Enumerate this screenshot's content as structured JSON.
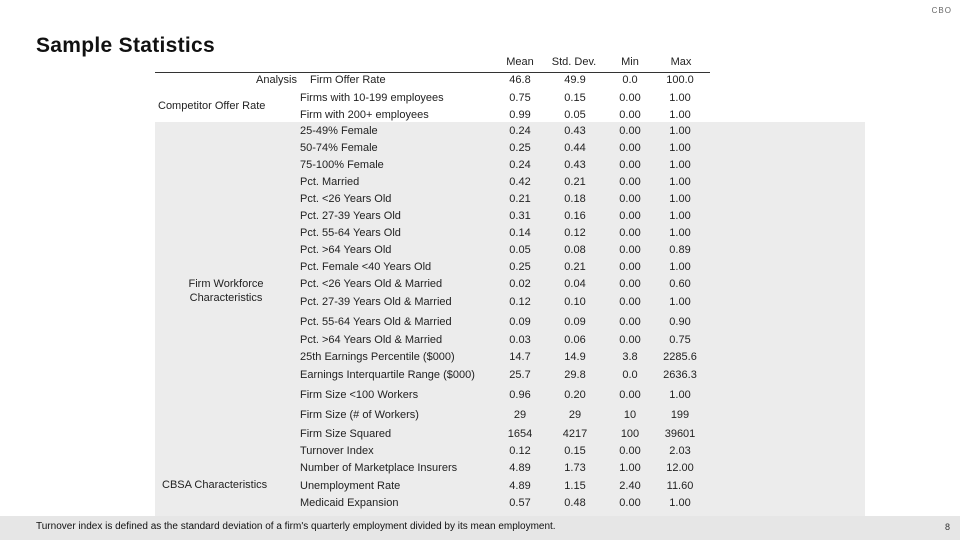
{
  "header": {
    "logo": "CBO",
    "title": "Sample Statistics"
  },
  "table": {
    "columns": [
      "Mean",
      "Std. Dev.",
      "Min",
      "Max"
    ],
    "groups": {
      "analysis": "Analysis",
      "competitor": "Competitor Offer Rate",
      "workforce": "Firm Workforce Characteristics",
      "cbsa": "CBSA Characteristics"
    },
    "rows": [
      {
        "label": "Firm Offer Rate",
        "mean": "46.8",
        "sd": "49.9",
        "min": "0.0",
        "max": "100.0"
      },
      {
        "label": "Firms with 10-199 employees",
        "mean": "0.75",
        "sd": "0.15",
        "min": "0.00",
        "max": "1.00"
      },
      {
        "label": "Firm with 200+ employees",
        "mean": "0.99",
        "sd": "0.05",
        "min": "0.00",
        "max": "1.00"
      },
      {
        "label": "25-49% Female",
        "mean": "0.24",
        "sd": "0.43",
        "min": "0.00",
        "max": "1.00"
      },
      {
        "label": "50-74% Female",
        "mean": "0.25",
        "sd": "0.44",
        "min": "0.00",
        "max": "1.00"
      },
      {
        "label": "75-100% Female",
        "mean": "0.24",
        "sd": "0.43",
        "min": "0.00",
        "max": "1.00"
      },
      {
        "label": "Pct. Married",
        "mean": "0.42",
        "sd": "0.21",
        "min": "0.00",
        "max": "1.00"
      },
      {
        "label": "Pct. <26 Years Old",
        "mean": "0.21",
        "sd": "0.18",
        "min": "0.00",
        "max": "1.00"
      },
      {
        "label": "Pct. 27-39 Years Old",
        "mean": "0.31",
        "sd": "0.16",
        "min": "0.00",
        "max": "1.00"
      },
      {
        "label": "Pct. 55-64 Years Old",
        "mean": "0.14",
        "sd": "0.12",
        "min": "0.00",
        "max": "1.00"
      },
      {
        "label": "Pct. >64 Years Old",
        "mean": "0.05",
        "sd": "0.08",
        "min": "0.00",
        "max": "0.89"
      },
      {
        "label": "Pct. Female <40 Years Old",
        "mean": "0.25",
        "sd": "0.21",
        "min": "0.00",
        "max": "1.00"
      },
      {
        "label": "Pct. <26 Years Old & Married",
        "mean": "0.02",
        "sd": "0.04",
        "min": "0.00",
        "max": "0.60"
      },
      {
        "label": "Pct. 27-39 Years Old & Married",
        "mean": "0.12",
        "sd": "0.10",
        "min": "0.00",
        "max": "1.00"
      },
      {
        "label": "Pct. 55-64 Years Old & Married",
        "mean": "0.09",
        "sd": "0.09",
        "min": "0.00",
        "max": "0.90"
      },
      {
        "label": "Pct. >64 Years Old & Married",
        "mean": "0.03",
        "sd": "0.06",
        "min": "0.00",
        "max": "0.75"
      },
      {
        "label": "25th Earnings Percentile ($000)",
        "mean": "14.7",
        "sd": "14.9",
        "min": "3.8",
        "max": "2285.6"
      },
      {
        "label": "Earnings Interquartile Range ($000)",
        "mean": "25.7",
        "sd": "29.8",
        "min": "0.0",
        "max": "2636.3"
      },
      {
        "label": "Firm Size <100 Workers",
        "mean": "0.96",
        "sd": "0.20",
        "min": "0.00",
        "max": "1.00"
      },
      {
        "label": "Firm Size (# of Workers)",
        "mean": "29",
        "sd": "29",
        "min": "10",
        "max": "199"
      },
      {
        "label": "Firm Size Squared",
        "mean": "1654",
        "sd": "4217",
        "min": "100",
        "max": "39601"
      },
      {
        "label": "Turnover Index",
        "mean": "0.12",
        "sd": "0.15",
        "min": "0.00",
        "max": "2.03"
      },
      {
        "label": "Number of Marketplace Insurers",
        "mean": "4.89",
        "sd": "1.73",
        "min": "1.00",
        "max": "12.00"
      },
      {
        "label": "Unemployment Rate",
        "mean": "4.89",
        "sd": "1.15",
        "min": "2.40",
        "max": "11.60"
      },
      {
        "label": "Medicaid Expansion",
        "mean": "0.57",
        "sd": "0.48",
        "min": "0.00",
        "max": "1.00"
      }
    ]
  },
  "footer": {
    "note": "Turnover index is defined as the standard deviation of a firm's quarterly employment divided by its mean employment.",
    "page": "8"
  }
}
